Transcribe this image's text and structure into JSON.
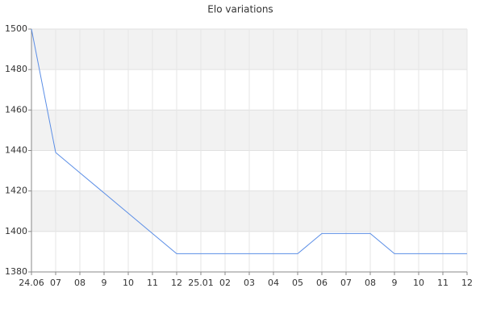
{
  "chart_data": {
    "type": "line",
    "title": "Elo variations",
    "categories": [
      "24.06",
      "07",
      "08",
      "9",
      "10",
      "11",
      "12",
      "25.01",
      "02",
      "03",
      "04",
      "05",
      "06",
      "07",
      "08",
      "9",
      "10",
      "11",
      "12"
    ],
    "values": [
      1500,
      1439,
      1429,
      1419,
      1409,
      1399,
      1389,
      1389,
      1389,
      1389,
      1389,
      1389,
      1399,
      1399,
      1399,
      1389,
      1389,
      1389,
      1389
    ],
    "color": "#5b8ee6",
    "ylim": [
      1380,
      1500
    ],
    "yticks": [
      1380,
      1400,
      1420,
      1440,
      1460,
      1480,
      1500
    ],
    "grid": true
  }
}
